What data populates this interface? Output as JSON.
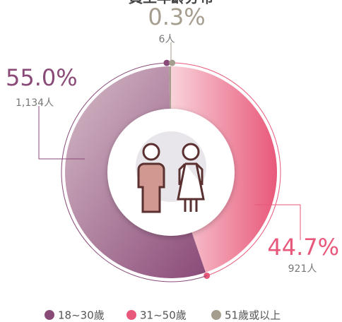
{
  "chart_data": {
    "type": "donut",
    "title": "員工年齡分布",
    "categories": [
      "18~30歲",
      "31~50歲",
      "51歲或以上"
    ],
    "values": [
      55.0,
      44.7,
      0.3
    ],
    "value_labels": [
      "55.0%",
      "44.7%",
      "0.3%"
    ],
    "count_labels": [
      "1,134人",
      "921人",
      "6人"
    ],
    "colors": [
      "#8a4a78",
      "#e8587a",
      "#a59d8e"
    ],
    "legend": "bottom"
  }
}
